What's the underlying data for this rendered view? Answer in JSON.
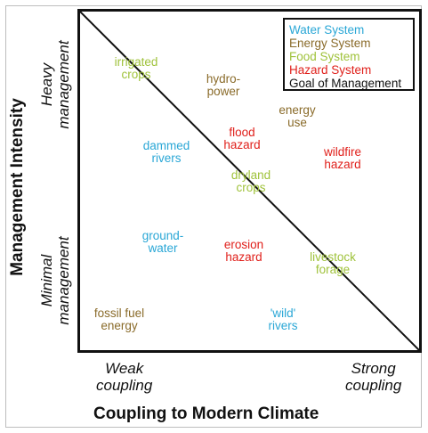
{
  "axes": {
    "y_title": "Management Intensity",
    "x_title": "Coupling to Modern Climate",
    "y_top": [
      "Heavy",
      "management"
    ],
    "y_bottom": [
      "Minimal",
      "management"
    ],
    "x_left": [
      "Weak",
      "coupling"
    ],
    "x_right": [
      "Strong",
      "coupling"
    ]
  },
  "legend": [
    {
      "label": "Water System",
      "color": "#2aa7d6"
    },
    {
      "label": "Energy System",
      "color": "#8a6b2a"
    },
    {
      "label": "Food System",
      "color": "#9fc23a"
    },
    {
      "label": "Hazard System",
      "color": "#e0201b"
    },
    {
      "label": "Goal of Management",
      "color": "#111111"
    }
  ],
  "items": [
    {
      "id": "irrigated-crops",
      "lines": [
        "irrigated",
        "crops"
      ],
      "system": "Food System",
      "color": "#9fc23a"
    },
    {
      "id": "hydro-power",
      "lines": [
        "hydro-",
        "power"
      ],
      "system": "Energy System",
      "color": "#8a6b2a"
    },
    {
      "id": "energy-use",
      "lines": [
        "energy",
        "use"
      ],
      "system": "Energy System",
      "color": "#8a6b2a"
    },
    {
      "id": "flood-hazard",
      "lines": [
        "flood",
        "hazard"
      ],
      "system": "Hazard System",
      "color": "#e0201b"
    },
    {
      "id": "dammed-rivers",
      "lines": [
        "dammed",
        "rivers"
      ],
      "system": "Water System",
      "color": "#2aa7d6"
    },
    {
      "id": "wildfire-hazard",
      "lines": [
        "wildfire",
        "hazard"
      ],
      "system": "Hazard System",
      "color": "#e0201b"
    },
    {
      "id": "dryland-crops",
      "lines": [
        "dryland",
        "crops"
      ],
      "system": "Food System",
      "color": "#9fc23a"
    },
    {
      "id": "ground-water",
      "lines": [
        "ground-",
        "water"
      ],
      "system": "Water System",
      "color": "#2aa7d6"
    },
    {
      "id": "erosion-hazard",
      "lines": [
        "erosion",
        "hazard"
      ],
      "system": "Hazard System",
      "color": "#e0201b"
    },
    {
      "id": "livestock-forage",
      "lines": [
        "livestock",
        "forage"
      ],
      "system": "Food System",
      "color": "#9fc23a"
    },
    {
      "id": "fossil-fuel-energy",
      "lines": [
        "fossil fuel",
        "energy"
      ],
      "system": "Energy System",
      "color": "#8a6b2a"
    },
    {
      "id": "wild-rivers",
      "lines": [
        "'wild'",
        "rivers"
      ],
      "system": "Water System",
      "color": "#2aa7d6"
    }
  ]
}
